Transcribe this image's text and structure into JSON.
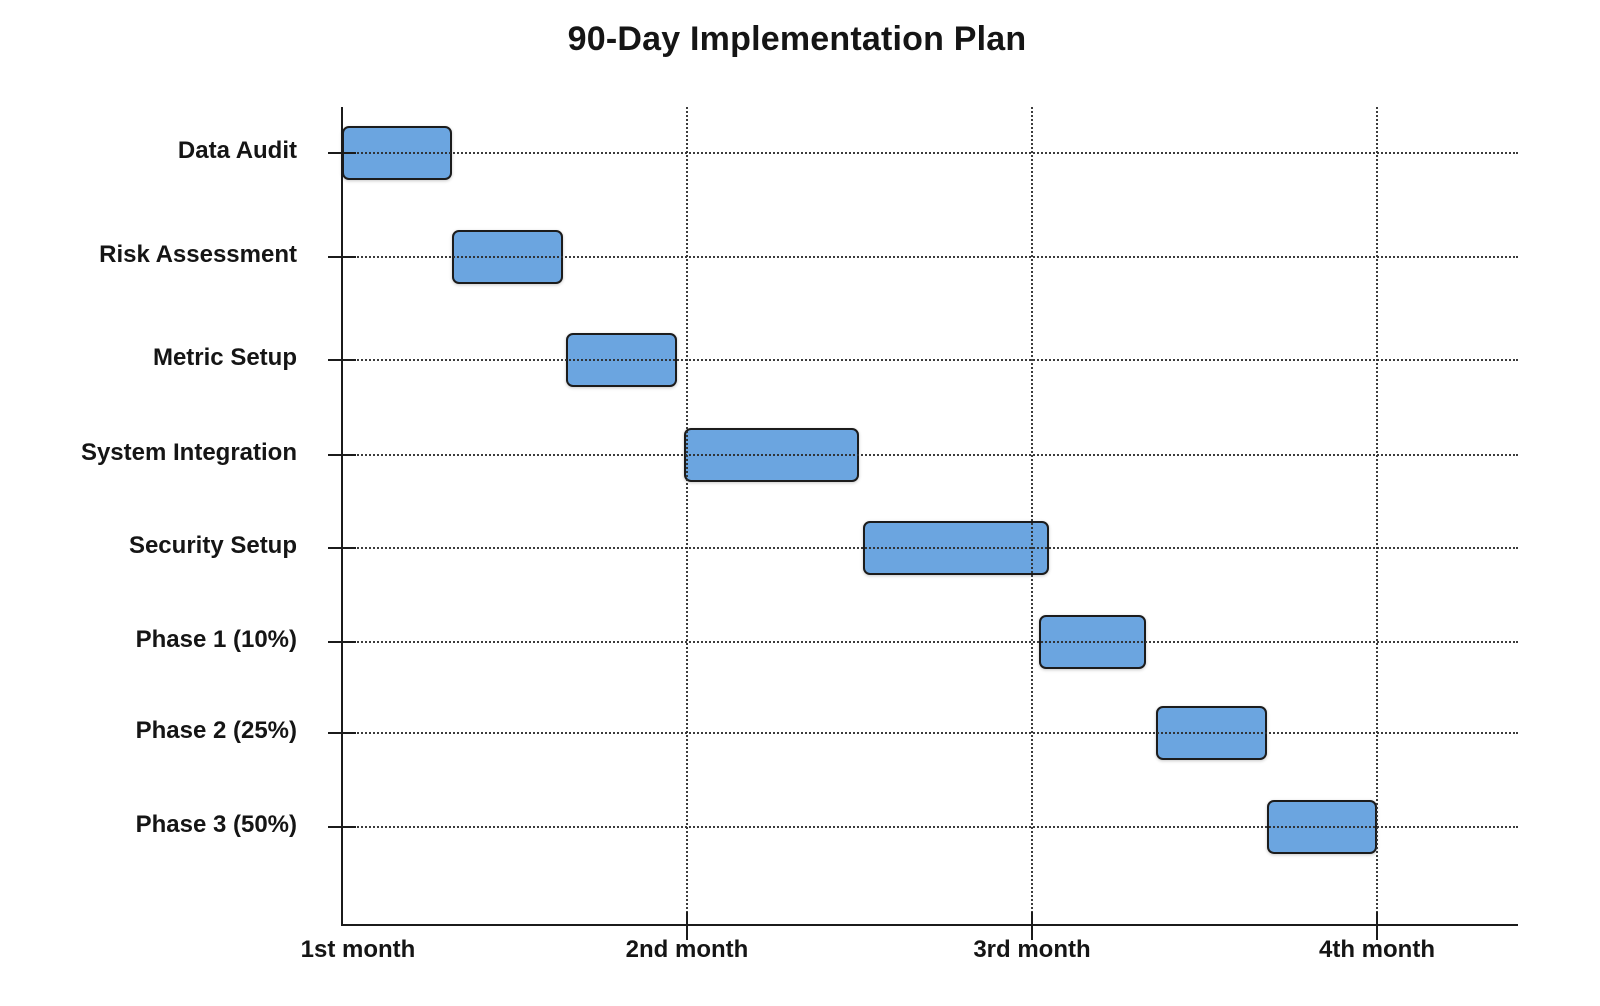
{
  "title": "90-Day Implementation Plan",
  "chart_data": {
    "type": "bar",
    "subtype": "gantt",
    "orientation": "horizontal",
    "title": "90-Day Implementation Plan",
    "xlabel": "",
    "ylabel": "",
    "categories": [
      "Data Audit",
      "Risk Assessment",
      "Metric Setup",
      "System Integration",
      "Security Setup",
      "Phase 1 (10%)",
      "Phase 2 (25%)",
      "Phase 3 (50%)"
    ],
    "tasks": [
      {
        "label": "Data Audit",
        "start_month": 1.0,
        "end_month": 1.32
      },
      {
        "label": "Risk Assessment",
        "start_month": 1.32,
        "end_month": 1.64
      },
      {
        "label": "Metric Setup",
        "start_month": 1.65,
        "end_month": 1.97
      },
      {
        "label": "System Integration",
        "start_month": 1.99,
        "end_month": 2.5
      },
      {
        "label": "Security Setup",
        "start_month": 2.51,
        "end_month": 3.05
      },
      {
        "label": "Phase 1 (10%)",
        "start_month": 3.02,
        "end_month": 3.33
      },
      {
        "label": "Phase 2 (25%)",
        "start_month": 3.36,
        "end_month": 3.68
      },
      {
        "label": "Phase 3 (50%)",
        "start_month": 3.68,
        "end_month": 4.0
      }
    ],
    "x_tick_labels": [
      "1st month",
      "2nd month",
      "3rd month",
      "4th month"
    ],
    "x_tick_months": [
      1,
      2,
      3,
      4
    ],
    "xlim": [
      1,
      4.41
    ],
    "grid": "dotted horizontal line per task row and dotted vertical line per month, drawn over bars",
    "legend": "none",
    "colors": {
      "bar_fill": "#6BA5E0",
      "bar_border": "#1C1C1C",
      "axis": "#1B1B1B",
      "text": "#151515",
      "background": "#FFFFFF"
    }
  }
}
